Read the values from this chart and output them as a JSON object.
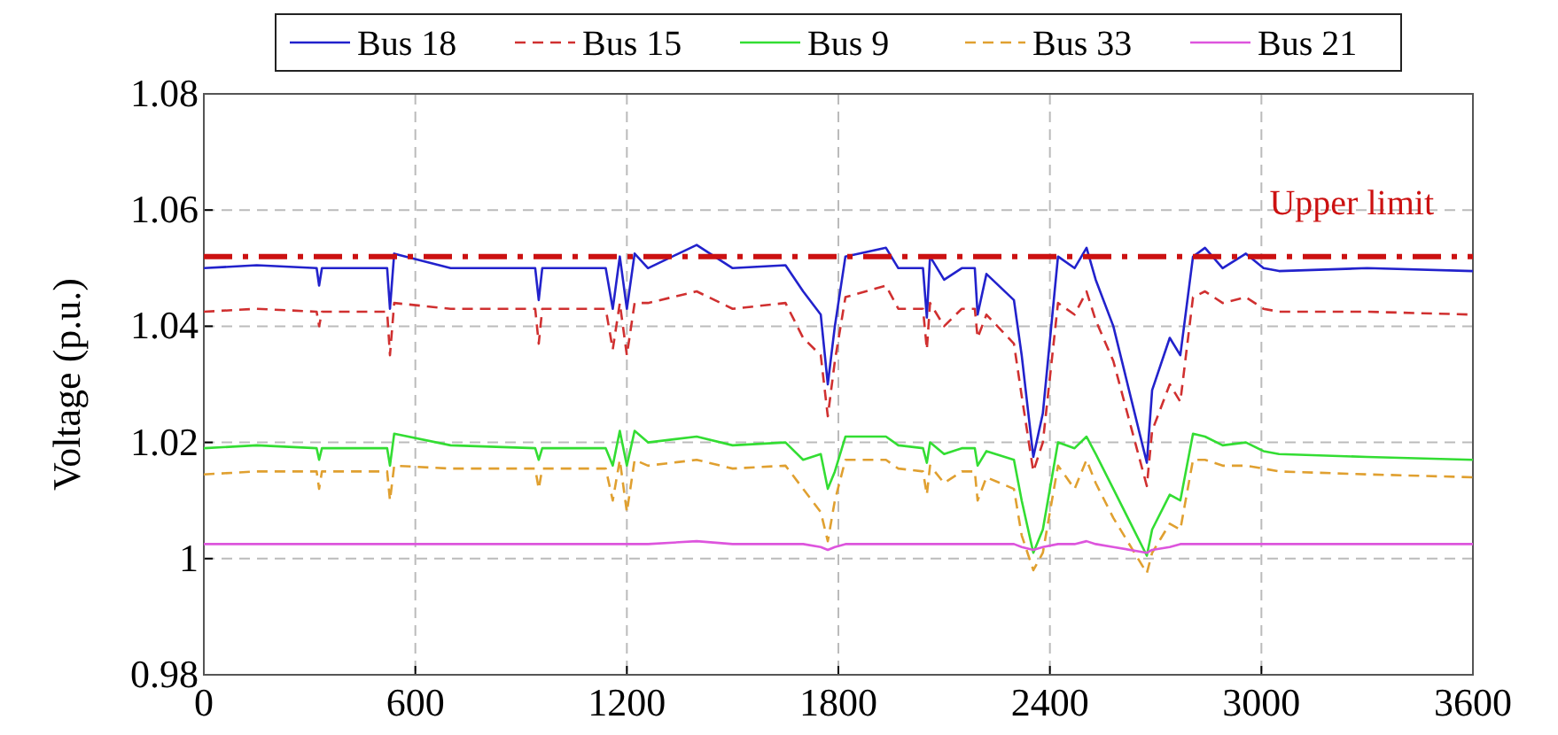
{
  "chart_data": {
    "type": "line",
    "ylabel": "Voltage (p.u.)",
    "x": [
      0,
      150,
      320,
      327,
      335,
      520,
      528,
      540,
      700,
      940,
      950,
      960,
      1140,
      1160,
      1180,
      1200,
      1222,
      1260,
      1398,
      1500,
      1650,
      1700,
      1750,
      1770,
      1790,
      1820,
      1935,
      1970,
      2040,
      2051,
      2060,
      2100,
      2150,
      2187,
      2195,
      2220,
      2298,
      2320,
      2353,
      2380,
      2423,
      2470,
      2504,
      2530,
      2580,
      2675,
      2690,
      2740,
      2770,
      2806,
      2840,
      2890,
      2956,
      3006,
      3050,
      3300,
      3600
    ],
    "series": [
      {
        "name": "Bus 18",
        "color": "#2222cc",
        "line_style": "solid",
        "values": [
          1.05,
          1.0505,
          1.05,
          1.047,
          1.05,
          1.05,
          1.043,
          1.0525,
          1.05,
          1.05,
          1.0445,
          1.05,
          1.05,
          1.043,
          1.052,
          1.043,
          1.0525,
          1.05,
          1.054,
          1.05,
          1.0505,
          1.046,
          1.042,
          1.03,
          1.04,
          1.052,
          1.0535,
          1.05,
          1.05,
          1.0415,
          1.052,
          1.048,
          1.05,
          1.05,
          1.042,
          1.049,
          1.0445,
          1.035,
          1.0175,
          1.025,
          1.052,
          1.05,
          1.0535,
          1.048,
          1.04,
          1.0165,
          1.029,
          1.038,
          1.035,
          1.052,
          1.0535,
          1.05,
          1.0525,
          1.05,
          1.0495,
          1.05,
          1.0495
        ]
      },
      {
        "name": "Bus 15",
        "color": "#d03030",
        "line_style": "dashed",
        "values": [
          1.0425,
          1.043,
          1.0425,
          1.04,
          1.0425,
          1.0425,
          1.035,
          1.044,
          1.043,
          1.043,
          1.037,
          1.043,
          1.043,
          1.036,
          1.044,
          1.035,
          1.044,
          1.044,
          1.046,
          1.043,
          1.044,
          1.038,
          1.035,
          1.0245,
          1.034,
          1.045,
          1.047,
          1.043,
          1.043,
          1.036,
          1.044,
          1.04,
          1.043,
          1.043,
          1.038,
          1.042,
          1.037,
          1.028,
          1.015,
          1.02,
          1.044,
          1.042,
          1.046,
          1.041,
          1.034,
          1.0125,
          1.022,
          1.03,
          1.027,
          1.045,
          1.046,
          1.044,
          1.045,
          1.043,
          1.0425,
          1.0425,
          1.042
        ]
      },
      {
        "name": "Bus 9",
        "color": "#33dd33",
        "line_style": "solid",
        "values": [
          1.019,
          1.0195,
          1.019,
          1.017,
          1.019,
          1.019,
          1.016,
          1.0215,
          1.0195,
          1.019,
          1.017,
          1.019,
          1.019,
          1.016,
          1.022,
          1.016,
          1.022,
          1.02,
          1.021,
          1.0195,
          1.02,
          1.017,
          1.018,
          1.012,
          1.015,
          1.021,
          1.021,
          1.0195,
          1.019,
          1.0165,
          1.02,
          1.018,
          1.019,
          1.019,
          1.016,
          1.0185,
          1.017,
          1.01,
          1.001,
          1.005,
          1.02,
          1.019,
          1.021,
          1.018,
          1.012,
          1.0005,
          1.005,
          1.011,
          1.01,
          1.0215,
          1.021,
          1.0195,
          1.02,
          1.0185,
          1.018,
          1.0175,
          1.017
        ]
      },
      {
        "name": "Bus 33",
        "color": "#e0a030",
        "line_style": "dashed",
        "values": [
          1.0145,
          1.015,
          1.015,
          1.012,
          1.015,
          1.015,
          1.01,
          1.016,
          1.0155,
          1.0155,
          1.012,
          1.0155,
          1.0155,
          1.01,
          1.017,
          1.008,
          1.017,
          1.016,
          1.017,
          1.0155,
          1.016,
          1.012,
          1.008,
          1.003,
          1.01,
          1.017,
          1.017,
          1.0155,
          1.015,
          1.011,
          1.016,
          1.013,
          1.015,
          1.015,
          1.01,
          1.014,
          1.012,
          1.004,
          0.998,
          1.001,
          1.016,
          1.012,
          1.017,
          1.013,
          1.007,
          0.9975,
          1.001,
          1.006,
          1.005,
          1.017,
          1.017,
          1.016,
          1.016,
          1.0155,
          1.015,
          1.0145,
          1.014
        ]
      },
      {
        "name": "Bus 21",
        "color": "#dd55dd",
        "line_style": "solid",
        "values": [
          1.0025,
          1.0025,
          1.0025,
          1.0025,
          1.0025,
          1.0025,
          1.0025,
          1.0025,
          1.0025,
          1.0025,
          1.0025,
          1.0025,
          1.0025,
          1.0025,
          1.0025,
          1.0025,
          1.0025,
          1.0025,
          1.003,
          1.0025,
          1.0025,
          1.0025,
          1.002,
          1.0015,
          1.002,
          1.0025,
          1.0025,
          1.0025,
          1.0025,
          1.0025,
          1.0025,
          1.0025,
          1.0025,
          1.0025,
          1.0025,
          1.0025,
          1.0025,
          1.002,
          1.0015,
          1.002,
          1.0025,
          1.0025,
          1.003,
          1.0025,
          1.002,
          1.001,
          1.0015,
          1.002,
          1.0025,
          1.0025,
          1.0025,
          1.0025,
          1.0025,
          1.0025,
          1.0025,
          1.0025,
          1.0025
        ]
      }
    ],
    "xlim": [
      0,
      3600
    ],
    "xticks": [
      0,
      600,
      1200,
      1800,
      2400,
      3000,
      3600
    ],
    "ylim": [
      0.98,
      1.08
    ],
    "yticks": [
      {
        "value": 0.98,
        "label": "0.98"
      },
      {
        "value": 1,
        "label": "1"
      },
      {
        "value": 1.02,
        "label": "1.02"
      },
      {
        "value": 1.04,
        "label": "1.04"
      },
      {
        "value": 1.06,
        "label": "1.06"
      },
      {
        "value": 1.08,
        "label": "1.08"
      }
    ],
    "ref_lines": [
      {
        "axis": "y",
        "value": 1.052,
        "label": "Upper limit",
        "color": "#cc1111",
        "line_style": "dashed"
      }
    ],
    "grid": true,
    "legend": "top",
    "marker": "none"
  }
}
